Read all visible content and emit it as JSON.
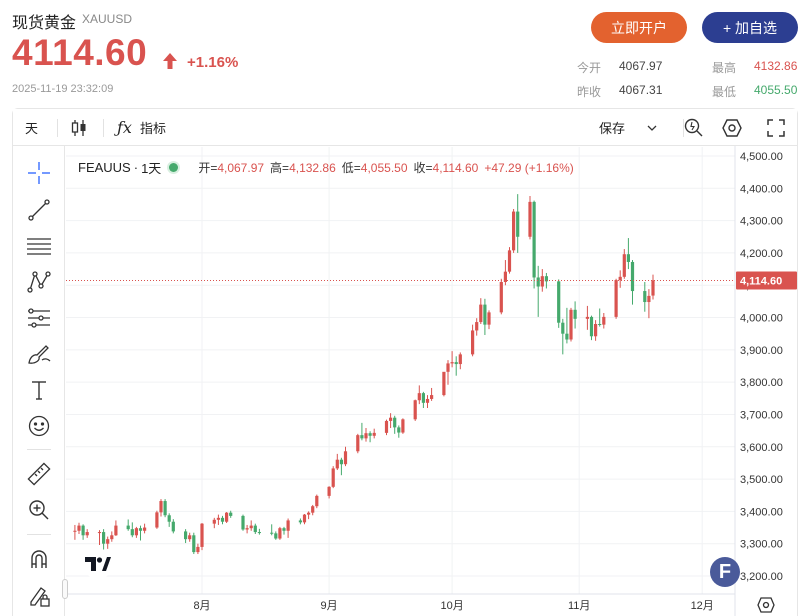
{
  "header": {
    "title": "现货黄金",
    "symbol": "XAUUSD",
    "price": "4114.60",
    "change": "+1.16%",
    "timestamp": "2025-11-19 23:32:09",
    "open_account_label": "立即开户",
    "add_fav_label": "+ 加自选",
    "stats": {
      "today_open_label": "今开",
      "today_open": "4067.97",
      "high_label": "最高",
      "high": "4132.86",
      "prev_close_label": "昨收",
      "prev_close": "4067.31",
      "low_label": "最低",
      "low": "4055.50"
    }
  },
  "toolbar": {
    "interval": "天",
    "indicators_label": "指标",
    "save_label": "保存"
  },
  "legend": {
    "name": "FEAUUS",
    "sep": "·",
    "interval": "1天",
    "open_label": "开=",
    "open": "4,067.97",
    "high_label": "高=",
    "high": "4,132.86",
    "low_label": "低=",
    "low": "4,055.50",
    "close_label": "收=",
    "close": "4,114.60",
    "change": "+47.29 (+1.16%)"
  },
  "colors": {
    "up": "#d9534f",
    "down": "#45a96c",
    "accent_orange": "#e3622f",
    "accent_navy": "#2c3e91"
  },
  "chart_data": {
    "type": "candlestick",
    "title": "",
    "y_axis_ticks": [
      "4,500.00",
      "4,400.00",
      "4,300.00",
      "4,200.00",
      "4,100.00",
      "4,000.00",
      "3,900.00",
      "3,800.00",
      "3,700.00",
      "3,600.00",
      "3,500.00",
      "3,400.00",
      "3,300.00",
      "3,200.00"
    ],
    "ylim": [
      3200,
      4500
    ],
    "x_axis_labels": [
      "8月",
      "9月",
      "10月",
      "11月",
      "12月"
    ],
    "x_axis_dates": [
      "2025-08-01",
      "2025-09-01",
      "2025-10-01",
      "2025-11-01",
      "2025-12-01"
    ],
    "last_price_label": "4,114.60",
    "last_price": 4114.6,
    "candles": [
      {
        "d": "2025-07-01",
        "o": 3338,
        "h": 3358,
        "l": 3312,
        "c": 3340
      },
      {
        "d": "2025-07-02",
        "o": 3340,
        "h": 3365,
        "l": 3330,
        "c": 3356
      },
      {
        "d": "2025-07-03",
        "o": 3356,
        "h": 3360,
        "l": 3312,
        "c": 3326
      },
      {
        "d": "2025-07-04",
        "o": 3326,
        "h": 3345,
        "l": 3318,
        "c": 3336
      },
      {
        "d": "2025-07-07",
        "o": 3336,
        "h": 3342,
        "l": 3296,
        "c": 3336
      },
      {
        "d": "2025-07-08",
        "o": 3336,
        "h": 3345,
        "l": 3282,
        "c": 3300
      },
      {
        "d": "2025-07-09",
        "o": 3300,
        "h": 3322,
        "l": 3284,
        "c": 3314
      },
      {
        "d": "2025-07-10",
        "o": 3314,
        "h": 3338,
        "l": 3306,
        "c": 3326
      },
      {
        "d": "2025-07-11",
        "o": 3326,
        "h": 3372,
        "l": 3324,
        "c": 3356
      },
      {
        "d": "2025-07-14",
        "o": 3356,
        "h": 3375,
        "l": 3340,
        "c": 3345
      },
      {
        "d": "2025-07-15",
        "o": 3345,
        "h": 3366,
        "l": 3320,
        "c": 3326
      },
      {
        "d": "2025-07-16",
        "o": 3326,
        "h": 3352,
        "l": 3318,
        "c": 3348
      },
      {
        "d": "2025-07-17",
        "o": 3348,
        "h": 3356,
        "l": 3310,
        "c": 3340
      },
      {
        "d": "2025-07-18",
        "o": 3340,
        "h": 3362,
        "l": 3332,
        "c": 3350
      },
      {
        "d": "2025-07-21",
        "o": 3350,
        "h": 3402,
        "l": 3346,
        "c": 3397
      },
      {
        "d": "2025-07-22",
        "o": 3397,
        "h": 3438,
        "l": 3384,
        "c": 3432
      },
      {
        "d": "2025-07-23",
        "o": 3432,
        "h": 3438,
        "l": 3382,
        "c": 3388
      },
      {
        "d": "2025-07-24",
        "o": 3388,
        "h": 3394,
        "l": 3352,
        "c": 3368
      },
      {
        "d": "2025-07-25",
        "o": 3368,
        "h": 3376,
        "l": 3332,
        "c": 3338
      },
      {
        "d": "2025-07-28",
        "o": 3338,
        "h": 3345,
        "l": 3302,
        "c": 3314
      },
      {
        "d": "2025-07-29",
        "o": 3314,
        "h": 3334,
        "l": 3306,
        "c": 3326
      },
      {
        "d": "2025-07-30",
        "o": 3326,
        "h": 3334,
        "l": 3268,
        "c": 3274
      },
      {
        "d": "2025-07-31",
        "o": 3274,
        "h": 3300,
        "l": 3268,
        "c": 3290
      },
      {
        "d": "2025-08-01",
        "o": 3290,
        "h": 3364,
        "l": 3280,
        "c": 3362
      },
      {
        "d": "2025-08-04",
        "o": 3362,
        "h": 3380,
        "l": 3348,
        "c": 3374
      },
      {
        "d": "2025-08-05",
        "o": 3374,
        "h": 3390,
        "l": 3358,
        "c": 3380
      },
      {
        "d": "2025-08-06",
        "o": 3380,
        "h": 3386,
        "l": 3360,
        "c": 3368
      },
      {
        "d": "2025-08-07",
        "o": 3368,
        "h": 3398,
        "l": 3364,
        "c": 3396
      },
      {
        "d": "2025-08-08",
        "o": 3396,
        "h": 3402,
        "l": 3380,
        "c": 3386
      },
      {
        "d": "2025-08-11",
        "o": 3386,
        "h": 3390,
        "l": 3340,
        "c": 3344
      },
      {
        "d": "2025-08-12",
        "o": 3344,
        "h": 3358,
        "l": 3332,
        "c": 3348
      },
      {
        "d": "2025-08-13",
        "o": 3348,
        "h": 3372,
        "l": 3340,
        "c": 3356
      },
      {
        "d": "2025-08-14",
        "o": 3356,
        "h": 3362,
        "l": 3330,
        "c": 3336
      },
      {
        "d": "2025-08-15",
        "o": 3336,
        "h": 3346,
        "l": 3328,
        "c": 3334
      },
      {
        "d": "2025-08-18",
        "o": 3334,
        "h": 3360,
        "l": 3326,
        "c": 3332
      },
      {
        "d": "2025-08-19",
        "o": 3332,
        "h": 3338,
        "l": 3312,
        "c": 3316
      },
      {
        "d": "2025-08-20",
        "o": 3316,
        "h": 3352,
        "l": 3312,
        "c": 3348
      },
      {
        "d": "2025-08-21",
        "o": 3348,
        "h": 3352,
        "l": 3328,
        "c": 3340
      },
      {
        "d": "2025-08-22",
        "o": 3340,
        "h": 3378,
        "l": 3318,
        "c": 3372
      },
      {
        "d": "2025-08-25",
        "o": 3372,
        "h": 3378,
        "l": 3360,
        "c": 3366
      },
      {
        "d": "2025-08-26",
        "o": 3366,
        "h": 3392,
        "l": 3360,
        "c": 3390
      },
      {
        "d": "2025-08-27",
        "o": 3390,
        "h": 3400,
        "l": 3376,
        "c": 3396
      },
      {
        "d": "2025-08-28",
        "o": 3396,
        "h": 3420,
        "l": 3388,
        "c": 3416
      },
      {
        "d": "2025-08-29",
        "o": 3416,
        "h": 3452,
        "l": 3410,
        "c": 3448
      },
      {
        "d": "2025-09-01",
        "o": 3448,
        "h": 3478,
        "l": 3440,
        "c": 3476
      },
      {
        "d": "2025-09-02",
        "o": 3476,
        "h": 3540,
        "l": 3472,
        "c": 3533
      },
      {
        "d": "2025-09-03",
        "o": 3533,
        "h": 3578,
        "l": 3528,
        "c": 3560
      },
      {
        "d": "2025-09-04",
        "o": 3560,
        "h": 3566,
        "l": 3512,
        "c": 3546
      },
      {
        "d": "2025-09-05",
        "o": 3546,
        "h": 3600,
        "l": 3540,
        "c": 3586
      },
      {
        "d": "2025-09-08",
        "o": 3586,
        "h": 3640,
        "l": 3580,
        "c": 3636
      },
      {
        "d": "2025-09-09",
        "o": 3636,
        "h": 3674,
        "l": 3620,
        "c": 3626
      },
      {
        "d": "2025-09-10",
        "o": 3626,
        "h": 3658,
        "l": 3616,
        "c": 3642
      },
      {
        "d": "2025-09-11",
        "o": 3642,
        "h": 3648,
        "l": 3614,
        "c": 3634
      },
      {
        "d": "2025-09-12",
        "o": 3634,
        "h": 3656,
        "l": 3626,
        "c": 3643
      },
      {
        "d": "2025-09-15",
        "o": 3643,
        "h": 3684,
        "l": 3636,
        "c": 3680
      },
      {
        "d": "2025-09-16",
        "o": 3680,
        "h": 3704,
        "l": 3658,
        "c": 3690
      },
      {
        "d": "2025-09-17",
        "o": 3690,
        "h": 3696,
        "l": 3640,
        "c": 3660
      },
      {
        "d": "2025-09-18",
        "o": 3660,
        "h": 3666,
        "l": 3628,
        "c": 3644
      },
      {
        "d": "2025-09-19",
        "o": 3644,
        "h": 3688,
        "l": 3640,
        "c": 3685
      },
      {
        "d": "2025-09-22",
        "o": 3685,
        "h": 3746,
        "l": 3680,
        "c": 3744
      },
      {
        "d": "2025-09-23",
        "o": 3744,
        "h": 3790,
        "l": 3732,
        "c": 3766
      },
      {
        "d": "2025-09-24",
        "o": 3766,
        "h": 3770,
        "l": 3720,
        "c": 3736
      },
      {
        "d": "2025-09-25",
        "o": 3736,
        "h": 3760,
        "l": 3720,
        "c": 3748
      },
      {
        "d": "2025-09-26",
        "o": 3748,
        "h": 3782,
        "l": 3742,
        "c": 3760
      },
      {
        "d": "2025-09-29",
        "o": 3760,
        "h": 3830,
        "l": 3756,
        "c": 3832
      },
      {
        "d": "2025-09-30",
        "o": 3832,
        "h": 3868,
        "l": 3792,
        "c": 3858
      },
      {
        "d": "2025-10-01",
        "o": 3858,
        "h": 3896,
        "l": 3846,
        "c": 3862
      },
      {
        "d": "2025-10-02",
        "o": 3862,
        "h": 3880,
        "l": 3820,
        "c": 3856
      },
      {
        "d": "2025-10-03",
        "o": 3856,
        "h": 3892,
        "l": 3840,
        "c": 3886
      },
      {
        "d": "2025-10-06",
        "o": 3886,
        "h": 3978,
        "l": 3880,
        "c": 3960
      },
      {
        "d": "2025-10-07",
        "o": 3960,
        "h": 3998,
        "l": 3944,
        "c": 3986
      },
      {
        "d": "2025-10-08",
        "o": 3986,
        "h": 4060,
        "l": 3980,
        "c": 4040
      },
      {
        "d": "2025-10-09",
        "o": 4040,
        "h": 4058,
        "l": 3946,
        "c": 3978
      },
      {
        "d": "2025-10-10",
        "o": 3978,
        "h": 4022,
        "l": 3964,
        "c": 4016
      },
      {
        "d": "2025-10-13",
        "o": 4016,
        "h": 4120,
        "l": 4010,
        "c": 4110
      },
      {
        "d": "2025-10-14",
        "o": 4110,
        "h": 4178,
        "l": 4100,
        "c": 4142
      },
      {
        "d": "2025-10-15",
        "o": 4142,
        "h": 4218,
        "l": 4136,
        "c": 4208
      },
      {
        "d": "2025-10-16",
        "o": 4208,
        "h": 4336,
        "l": 4200,
        "c": 4328
      },
      {
        "d": "2025-10-17",
        "o": 4328,
        "h": 4382,
        "l": 4200,
        "c": 4250
      },
      {
        "d": "2025-10-20",
        "o": 4250,
        "h": 4376,
        "l": 4242,
        "c": 4358
      },
      {
        "d": "2025-10-21",
        "o": 4358,
        "h": 4362,
        "l": 4090,
        "c": 4124
      },
      {
        "d": "2025-10-22",
        "o": 4124,
        "h": 4160,
        "l": 4002,
        "c": 4096
      },
      {
        "d": "2025-10-23",
        "o": 4096,
        "h": 4150,
        "l": 4080,
        "c": 4128
      },
      {
        "d": "2025-10-24",
        "o": 4128,
        "h": 4138,
        "l": 4090,
        "c": 4112
      },
      {
        "d": "2025-10-27",
        "o": 4112,
        "h": 4118,
        "l": 3968,
        "c": 3984
      },
      {
        "d": "2025-10-28",
        "o": 3984,
        "h": 3996,
        "l": 3886,
        "c": 3950
      },
      {
        "d": "2025-10-29",
        "o": 3950,
        "h": 4030,
        "l": 3920,
        "c": 3932
      },
      {
        "d": "2025-10-30",
        "o": 3932,
        "h": 4030,
        "l": 3926,
        "c": 4024
      },
      {
        "d": "2025-10-31",
        "o": 4024,
        "h": 4050,
        "l": 3966,
        "c": 3996
      },
      {
        "d": "2025-11-03",
        "o": 3996,
        "h": 4036,
        "l": 3962,
        "c": 4002
      },
      {
        "d": "2025-11-04",
        "o": 4002,
        "h": 4006,
        "l": 3930,
        "c": 3942
      },
      {
        "d": "2025-11-05",
        "o": 3942,
        "h": 3992,
        "l": 3928,
        "c": 3980
      },
      {
        "d": "2025-11-06",
        "o": 3980,
        "h": 4028,
        "l": 3972,
        "c": 3978
      },
      {
        "d": "2025-11-07",
        "o": 3978,
        "h": 4014,
        "l": 3966,
        "c": 4002
      },
      {
        "d": "2025-11-10",
        "o": 4002,
        "h": 4120,
        "l": 3996,
        "c": 4116
      },
      {
        "d": "2025-11-11",
        "o": 4116,
        "h": 4146,
        "l": 4092,
        "c": 4126
      },
      {
        "d": "2025-11-12",
        "o": 4126,
        "h": 4212,
        "l": 4120,
        "c": 4196
      },
      {
        "d": "2025-11-13",
        "o": 4196,
        "h": 4246,
        "l": 4150,
        "c": 4172
      },
      {
        "d": "2025-11-14",
        "o": 4172,
        "h": 4178,
        "l": 4040,
        "c": 4082
      },
      {
        "d": "2025-11-17",
        "o": 4082,
        "h": 4110,
        "l": 4018,
        "c": 4048
      },
      {
        "d": "2025-11-18",
        "o": 4048,
        "h": 4088,
        "l": 3998,
        "c": 4067
      },
      {
        "d": "2025-11-19",
        "o": 4068,
        "h": 4133,
        "l": 4056,
        "c": 4115
      }
    ]
  }
}
